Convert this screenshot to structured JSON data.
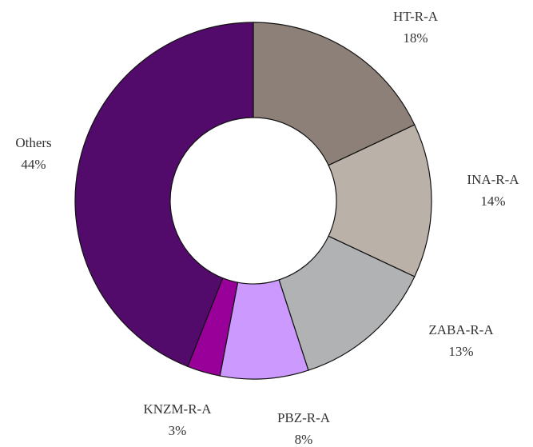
{
  "chart_data": {
    "type": "donut",
    "categories": [
      "HT-R-A",
      "INA-R-A",
      "ZABA-R-A",
      "PBZ-R-A",
      "KNZM-R-A",
      "Others"
    ],
    "values": [
      18,
      14,
      13,
      8,
      3,
      44
    ],
    "value_labels": [
      "18%",
      "14%",
      "13%",
      "8%",
      "3%",
      "44%"
    ],
    "colors": [
      "#8c8078",
      "#bab1a9",
      "#b0b2b3",
      "#cc99ff",
      "#990099",
      "#520a6b"
    ]
  }
}
